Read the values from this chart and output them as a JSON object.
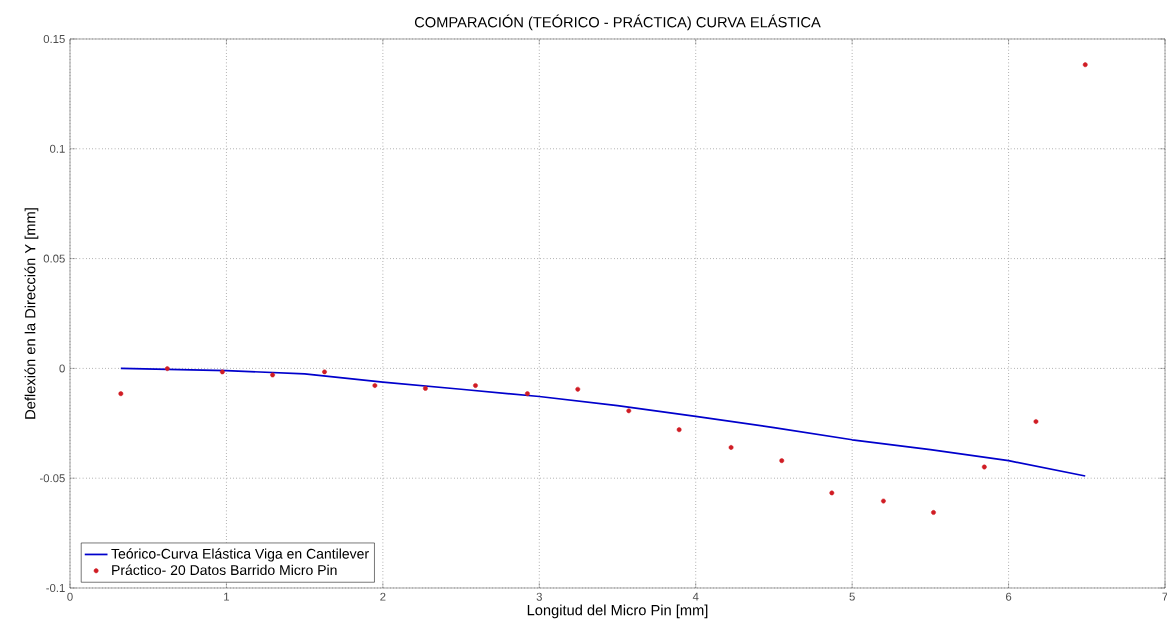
{
  "chart_data": {
    "type": "line",
    "title": "COMPARACIÓN (TEÓRICO - PRÁCTICA) CURVA ELÁSTICA",
    "xlabel": "Longitud del Micro Pin [mm]",
    "ylabel": "Deflexión en la Dirección Y [mm]",
    "xlim": [
      0,
      7
    ],
    "ylim": [
      -0.1,
      0.15
    ],
    "xticks": [
      0,
      1,
      2,
      3,
      4,
      5,
      6,
      7
    ],
    "yticks": [
      -0.1,
      -0.05,
      0,
      0.05,
      0.1,
      0.15
    ],
    "grid": true,
    "legend": "bottom left",
    "series": [
      {
        "name": "Teórico-Curva Elástica Viga en Cantilever",
        "line_style": "solid",
        "marker": "none",
        "color": "#0000cc",
        "x": [
          0.325,
          1,
          1.5,
          2,
          2.5,
          3,
          3.5,
          4,
          4.5,
          5,
          5.5,
          6,
          6.49
        ],
        "values": [
          0,
          -0.001,
          -0.0025,
          -0.0063,
          -0.0095,
          -0.0128,
          -0.017,
          -0.0218,
          -0.027,
          -0.0325,
          -0.037,
          -0.042,
          -0.049
        ]
      },
      {
        "name": "Práctico- 20 Datos Barrido Micro Pin",
        "type": "scatter",
        "marker": "circle",
        "color": "#d01c24",
        "x": [
          0.325,
          0.622,
          0.974,
          1.295,
          1.627,
          1.949,
          2.272,
          2.592,
          2.924,
          3.246,
          3.572,
          3.894,
          4.226,
          4.55,
          4.87,
          5.2,
          5.52,
          5.845,
          6.175,
          6.49
        ],
        "values": [
          -0.0115,
          -0.0001,
          -0.0016,
          -0.003,
          -0.0016,
          -0.0078,
          -0.0091,
          -0.0078,
          -0.0115,
          -0.0095,
          -0.0193,
          -0.0279,
          -0.036,
          -0.042,
          -0.0567,
          -0.0604,
          -0.0656,
          -0.0449,
          -0.0242,
          0.1383
        ]
      }
    ]
  }
}
